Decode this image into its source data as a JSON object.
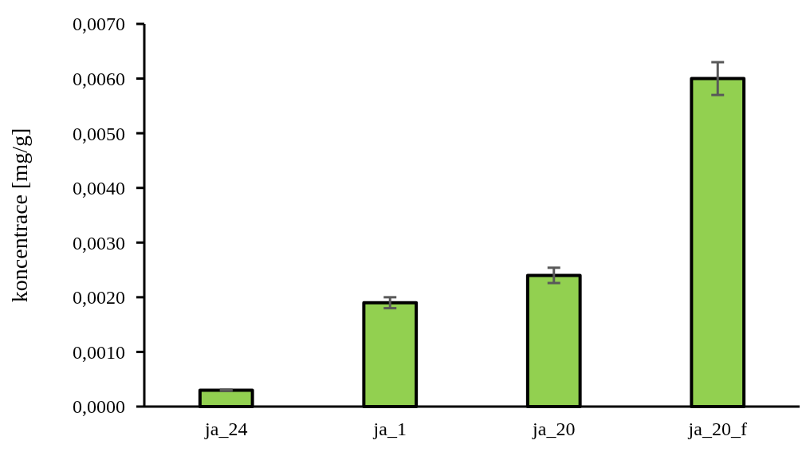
{
  "chart_data": {
    "type": "bar",
    "ylabel": "koncentrace [mg/g]",
    "categories": [
      "ja_24",
      "ja_1",
      "ja_20",
      "ja_20_f"
    ],
    "values": [
      0.0003,
      0.0019,
      0.0024,
      0.006
    ],
    "color": "#92d050",
    "errors": [
      1e-05,
      0.0001,
      0.00014,
      0.0003
    ],
    "ylim": [
      0,
      0.007
    ],
    "yticks": [
      {
        "value": 0,
        "label": "0,0000"
      },
      {
        "value": 0.001,
        "label": "0,0010"
      },
      {
        "value": 0.002,
        "label": "0,0020"
      },
      {
        "value": 0.003,
        "label": "0,0030"
      },
      {
        "value": 0.004,
        "label": "0,0040"
      },
      {
        "value": 0.005,
        "label": "0,0050"
      },
      {
        "value": 0.006,
        "label": "0,0060"
      },
      {
        "value": 0.007,
        "label": "0,0070"
      }
    ],
    "grid": false
  }
}
